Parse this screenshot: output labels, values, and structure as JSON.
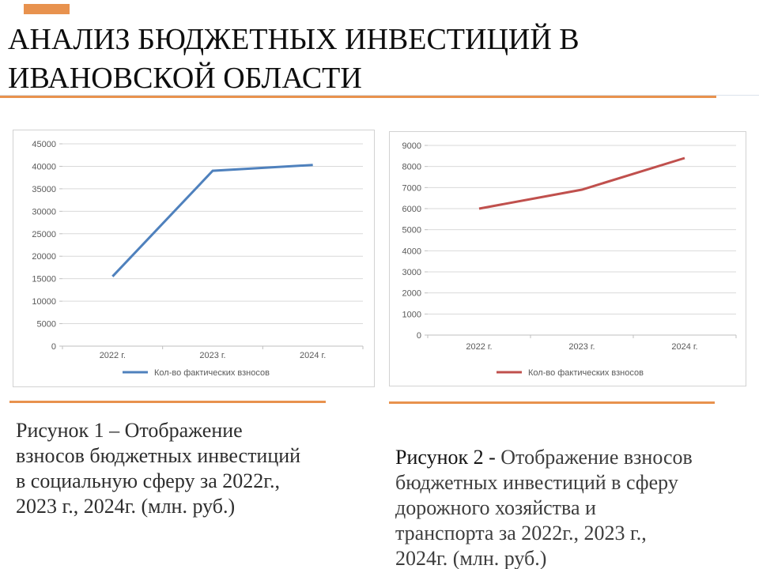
{
  "slide": {
    "title": "АНАЛИЗ БЮДЖЕТНЫХ ИНВЕСТИЦИЙ В\nИВАНОВСКОЙ ОБЛАСТИ",
    "accent_color": "#E8924E"
  },
  "chart_data": [
    {
      "type": "line",
      "title": "",
      "categories": [
        "2022 г.",
        "2023 г.",
        "2024 г."
      ],
      "series": [
        {
          "name": "Кол-во фактических взносов",
          "values": [
            15500,
            39000,
            40300
          ],
          "color": "#4F81BD"
        }
      ],
      "xlabel": "",
      "ylabel": "",
      "ylim": [
        0,
        45000
      ],
      "ytick_step": 5000,
      "grid": true,
      "legend_position": "bottom",
      "gridline_color": "#D9D9D9",
      "axis_color": "#BFBFBF",
      "tick_label_color": "#595959"
    },
    {
      "type": "line",
      "title": "",
      "categories": [
        "2022 г.",
        "2023 г.",
        "2024 г."
      ],
      "series": [
        {
          "name": "Кол-во фактических взносов",
          "values": [
            6000,
            6900,
            8400
          ],
          "color": "#C0504D"
        }
      ],
      "xlabel": "",
      "ylabel": "",
      "ylim": [
        0,
        9000
      ],
      "ytick_step": 1000,
      "grid": true,
      "legend_position": "bottom",
      "gridline_color": "#D9D9D9",
      "axis_color": "#BFBFBF",
      "tick_label_color": "#595959"
    }
  ],
  "captions": {
    "figure1": "Рисунок 1 – Отображение\nвзносов бюджетных инвестиций\nв социальную сферу за 2022г.,\n2023 г., 2024г. (млн. руб.)",
    "figure2_prefix": "Рисунок 2 - ",
    "figure2_rest": "Отображение взносов\nбюджетных инвестиций в сферу\nдорожного хозяйства и\nтранспорта за 2022г., 2023 г.,\n2024г. (млн. руб.)"
  }
}
